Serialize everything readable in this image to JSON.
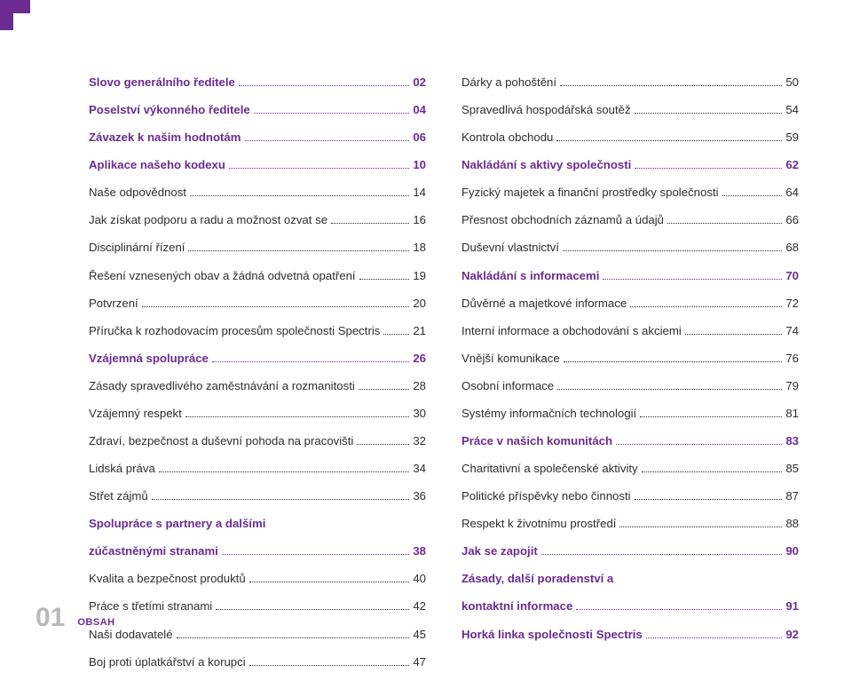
{
  "colors": {
    "purple": "#6a2c91",
    "text": "#2e2e2e",
    "footer_num": "#b9b9b9",
    "background": "#ffffff"
  },
  "typography": {
    "body_fontsize": 13.2,
    "footer_num_fontsize": 30,
    "footer_label_fontsize": 11,
    "line_height": 1.9
  },
  "footer": {
    "page_number": "01",
    "section_label": "OBSAH"
  },
  "corner_shape": {
    "width": 34,
    "height": 34,
    "notch": 15,
    "color": "#6a2c91"
  },
  "toc": {
    "left": [
      {
        "label": "Slovo generálního ředitele",
        "page": "02",
        "bold": true,
        "purple": true
      },
      {
        "label": "Poselství výkonného ředitele",
        "page": "04",
        "bold": true,
        "purple": true
      },
      {
        "label": "Závazek k našim hodnotám",
        "page": "06",
        "bold": true,
        "purple": true
      },
      {
        "label": "Aplikace našeho kodexu",
        "page": "10",
        "bold": true,
        "purple": true
      },
      {
        "label": "Naše odpovědnost",
        "page": "14",
        "bold": false,
        "purple": false
      },
      {
        "label": "Jak získat podporu a radu a možnost ozvat se",
        "page": "16",
        "bold": false,
        "purple": false
      },
      {
        "label": "Disciplinární řízení",
        "page": "18",
        "bold": false,
        "purple": false
      },
      {
        "label": "Řešení vznesených obav a žádná odvetná opatření",
        "page": "19",
        "bold": false,
        "purple": false
      },
      {
        "label": "Potvrzení",
        "page": "20",
        "bold": false,
        "purple": false
      },
      {
        "label": "Příručka k rozhodovacím procesům společnosti Spectris",
        "page": "21",
        "bold": false,
        "purple": false
      },
      {
        "label": "Vzájemná spolupráce",
        "page": "26",
        "bold": true,
        "purple": true
      },
      {
        "label": "Zásady spravedlivého zaměstnávání a rozmanitosti",
        "page": "28",
        "bold": false,
        "purple": false
      },
      {
        "label": "Vzájemný respekt",
        "page": "30",
        "bold": false,
        "purple": false
      },
      {
        "label": "Zdraví, bezpečnost a duševní pohoda na pracovišti",
        "page": "32",
        "bold": false,
        "purple": false
      },
      {
        "label": "Lidská práva",
        "page": "34",
        "bold": false,
        "purple": false
      },
      {
        "label": "Střet zájmů",
        "page": "36",
        "bold": false,
        "purple": false
      },
      {
        "label": "Spolupráce s partnery a dalšími",
        "page": "",
        "bold": true,
        "purple": true,
        "nodots": true
      },
      {
        "label": "zúčastněnými stranami",
        "page": "38",
        "bold": true,
        "purple": true
      },
      {
        "label": "Kvalita a bezpečnost produktů",
        "page": "40",
        "bold": false,
        "purple": false
      },
      {
        "label": "Práce s třetími stranami",
        "page": "42",
        "bold": false,
        "purple": false
      },
      {
        "label": "Naši dodavatelé",
        "page": "45",
        "bold": false,
        "purple": false
      },
      {
        "label": "Boj proti úplatkářství a korupci",
        "page": "47",
        "bold": false,
        "purple": false
      }
    ],
    "right": [
      {
        "label": "Dárky a pohoštění",
        "page": "50",
        "bold": false,
        "purple": false
      },
      {
        "label": "Spravedlivá hospodářská soutěž",
        "page": "54",
        "bold": false,
        "purple": false
      },
      {
        "label": "Kontrola obchodu",
        "page": "59",
        "bold": false,
        "purple": false
      },
      {
        "label": "Nakládání s aktivy společnosti",
        "page": "62",
        "bold": true,
        "purple": true
      },
      {
        "label": "Fyzický majetek a finanční prostředky společnosti",
        "page": "64",
        "bold": false,
        "purple": false
      },
      {
        "label": "Přesnost obchodních záznamů a údajů",
        "page": "66",
        "bold": false,
        "purple": false
      },
      {
        "label": "Duševní vlastnictví",
        "page": "68",
        "bold": false,
        "purple": false
      },
      {
        "label": "Nakládání s informacemi",
        "page": "70",
        "bold": true,
        "purple": true
      },
      {
        "label": "Důvěrné a majetkové informace",
        "page": "72",
        "bold": false,
        "purple": false
      },
      {
        "label": "Interní informace a obchodování s akciemi",
        "page": "74",
        "bold": false,
        "purple": false
      },
      {
        "label": "Vnější komunikace",
        "page": "76",
        "bold": false,
        "purple": false
      },
      {
        "label": "Osobní informace",
        "page": "79",
        "bold": false,
        "purple": false
      },
      {
        "label": "Systémy informačních technologií",
        "page": "81",
        "bold": false,
        "purple": false
      },
      {
        "label": "Práce v našich komunitách",
        "page": "83",
        "bold": true,
        "purple": true
      },
      {
        "label": "Charitativní a společenské aktivity",
        "page": "85",
        "bold": false,
        "purple": false
      },
      {
        "label": "Politické příspěvky nebo činnosti",
        "page": "87",
        "bold": false,
        "purple": false
      },
      {
        "label": "Respekt k životnímu prostředí",
        "page": "88",
        "bold": false,
        "purple": false
      },
      {
        "label": "Jak se zapojit",
        "page": "90",
        "bold": true,
        "purple": true
      },
      {
        "label": "Zásady, další poradenství a",
        "page": "",
        "bold": true,
        "purple": true,
        "nodots": true
      },
      {
        "label": "kontaktní informace",
        "page": "91",
        "bold": true,
        "purple": true
      },
      {
        "label": "Horká linka společnosti Spectris",
        "page": "92",
        "bold": true,
        "purple": true
      }
    ]
  }
}
